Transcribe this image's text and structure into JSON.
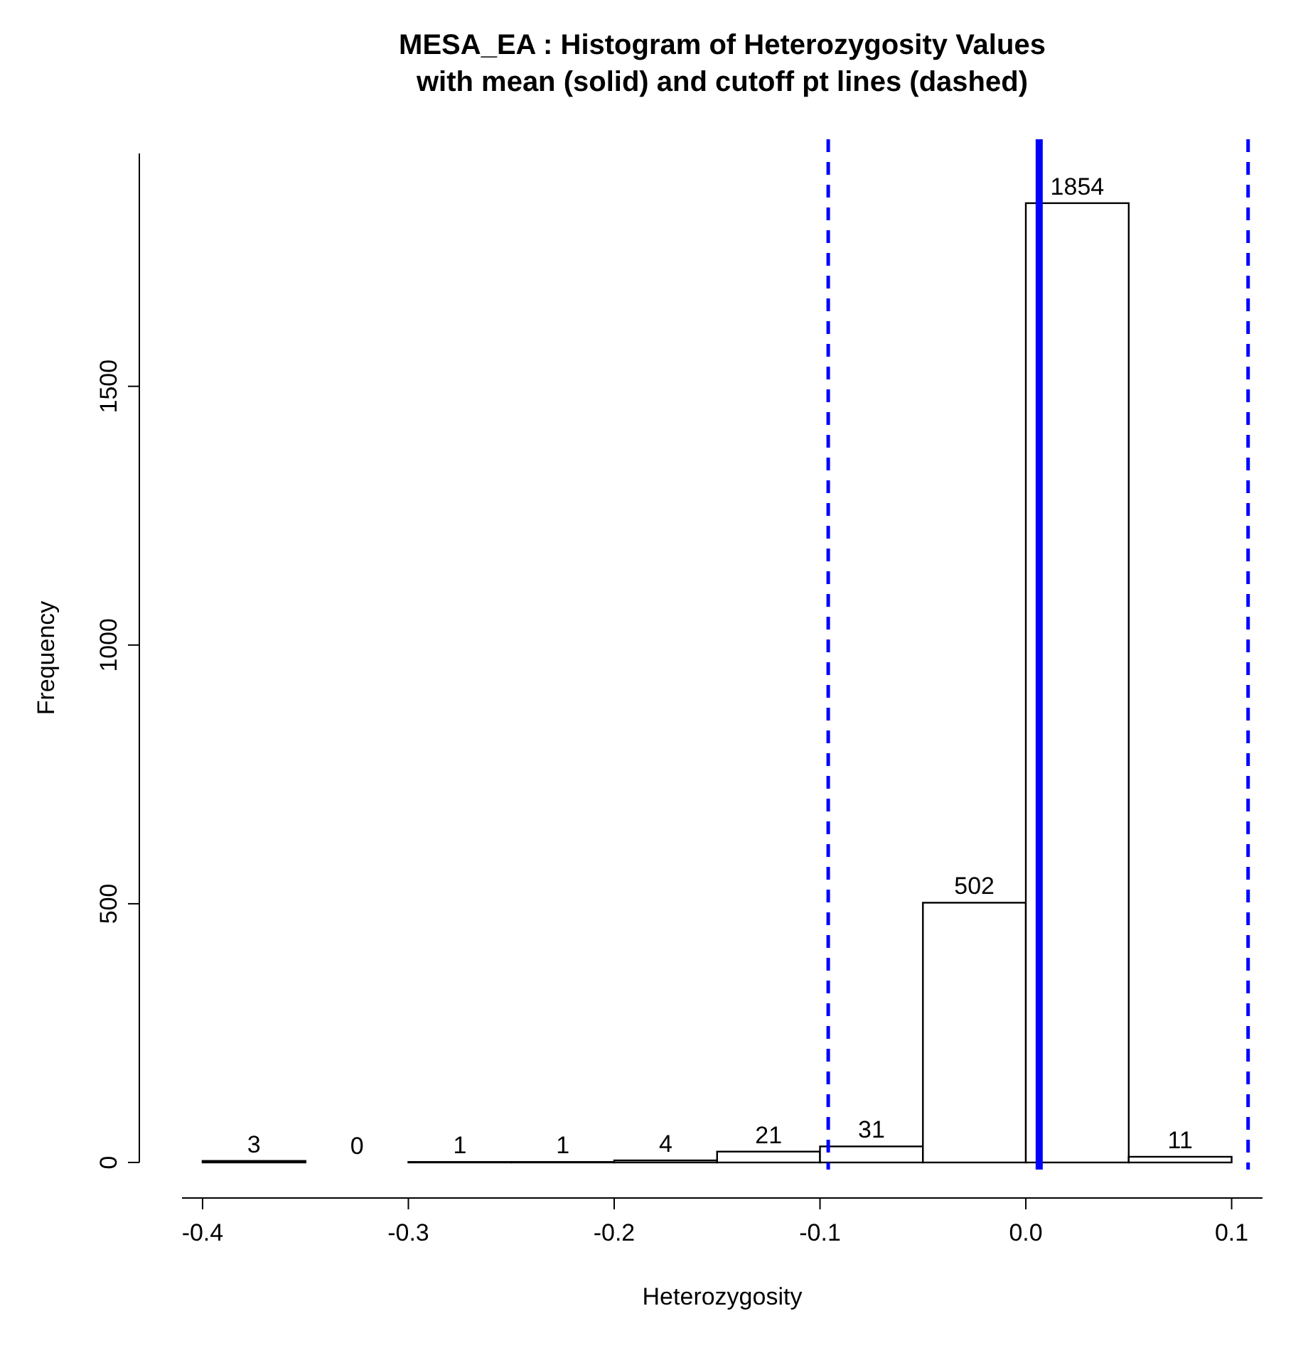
{
  "chart_data": {
    "type": "histogram",
    "title": "MESA_EA : Histogram of Heterozygosity Values",
    "subtitle": "with mean (solid) and cutoff pt lines (dashed)",
    "xlabel": "Heterozygosity",
    "ylabel": "Frequency",
    "bins": [
      -0.4,
      -0.35,
      -0.3,
      -0.25,
      -0.2,
      -0.15,
      -0.1,
      -0.05,
      0,
      0.05,
      0.1
    ],
    "values": [
      3,
      0,
      1,
      1,
      4,
      21,
      31,
      502,
      1854,
      11
    ],
    "color": "#ffffff",
    "data_labels": true,
    "xlim": [
      -0.41,
      0.115
    ],
    "xticks": [
      -0.4,
      -0.3,
      -0.2,
      -0.1,
      {
        "value": 0,
        "label": "0.0"
      },
      0.1
    ],
    "ylim": [
      0,
      1950
    ],
    "yticks": [
      0,
      500,
      1000,
      1500
    ],
    "ref_lines": [
      {
        "axis": "x",
        "value": 0.0065,
        "color": "#0000ff",
        "line_style": "solid"
      },
      {
        "axis": "x",
        "value": -0.096,
        "color": "#0000ff",
        "line_style": "dashed"
      },
      {
        "axis": "x",
        "value": 0.108,
        "color": "#0000ff",
        "line_style": "dashed"
      }
    ]
  }
}
